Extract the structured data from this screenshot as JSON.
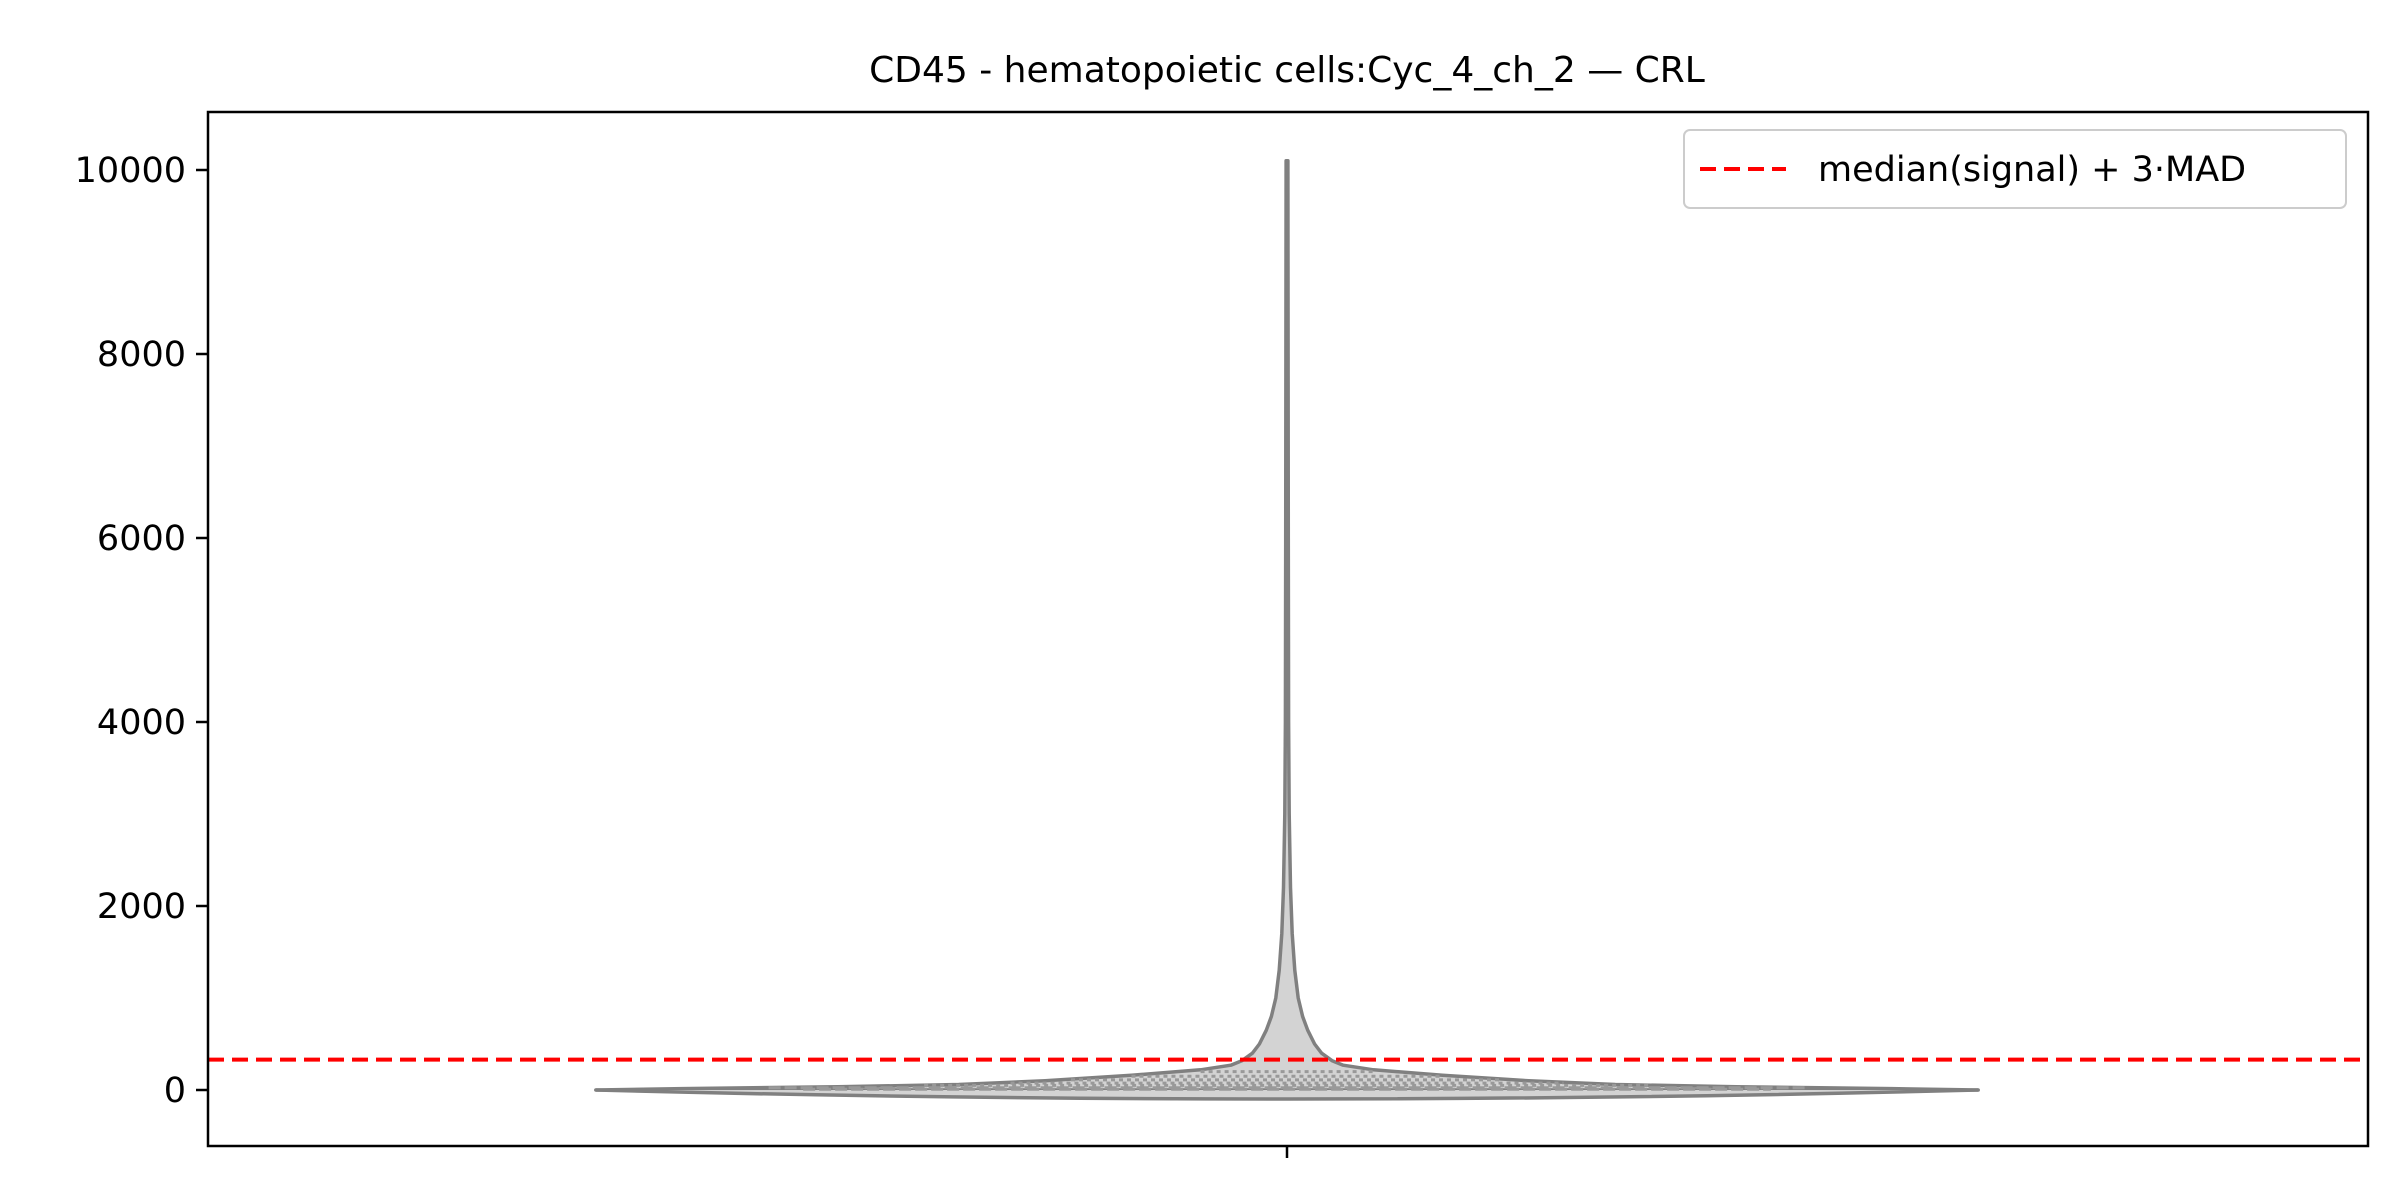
{
  "chart_data": {
    "type": "violin",
    "title": "CD45 - hematopoietic cells:Cyc_4_ch_2 — CRL",
    "xlabel": "",
    "ylabel": "",
    "categories": [
      ""
    ],
    "ylim": [
      -600,
      10600
    ],
    "yticks": [
      0,
      2000,
      4000,
      6000,
      8000,
      10000
    ],
    "ytick_labels": [
      "0",
      "2000",
      "4000",
      "6000",
      "8000",
      "10000"
    ],
    "grid": false,
    "legend": {
      "position": "top-right",
      "entries": [
        {
          "label": "median(signal) + 3·MAD",
          "style": "dashed",
          "color": "#ff0000"
        }
      ]
    },
    "threshold": {
      "label": "median(signal) + 3·MAD",
      "value": 330,
      "color": "#ff0000"
    },
    "violin": {
      "fill_color": "#d3d3d3",
      "edge_color": "#808080",
      "min": 0,
      "max": 10100,
      "density_profile": [
        {
          "y": 0,
          "halfwidth": 0.8
        },
        {
          "y": 15,
          "halfwidth": 0.7
        },
        {
          "y": 35,
          "halfwidth": 0.52
        },
        {
          "y": 60,
          "halfwidth": 0.38
        },
        {
          "y": 100,
          "halfwidth": 0.28
        },
        {
          "y": 160,
          "halfwidth": 0.18
        },
        {
          "y": 220,
          "halfwidth": 0.1
        },
        {
          "y": 270,
          "halfwidth": 0.065
        },
        {
          "y": 320,
          "halfwidth": 0.052
        },
        {
          "y": 400,
          "halfwidth": 0.04
        },
        {
          "y": 500,
          "halfwidth": 0.032
        },
        {
          "y": 650,
          "halfwidth": 0.024
        },
        {
          "y": 800,
          "halfwidth": 0.018
        },
        {
          "y": 1000,
          "halfwidth": 0.013
        },
        {
          "y": 1300,
          "halfwidth": 0.009
        },
        {
          "y": 1700,
          "halfwidth": 0.006
        },
        {
          "y": 2200,
          "halfwidth": 0.004
        },
        {
          "y": 3000,
          "halfwidth": 0.0025
        },
        {
          "y": 4000,
          "halfwidth": 0.0018
        },
        {
          "y": 6000,
          "halfwidth": 0.0015
        },
        {
          "y": 8000,
          "halfwidth": 0.0013
        },
        {
          "y": 10100,
          "halfwidth": 0.001
        }
      ],
      "quartile_lines": [
        {
          "y": 8,
          "halfwidth": 0.56,
          "style": "dashed"
        },
        {
          "y": 25,
          "halfwidth": 0.6,
          "style": "dashed"
        },
        {
          "y": 50,
          "halfwidth": 0.42,
          "style": "dotted"
        },
        {
          "y": 75,
          "halfwidth": 0.32,
          "style": "dotted"
        },
        {
          "y": 110,
          "halfwidth": 0.25,
          "style": "dotted"
        },
        {
          "y": 150,
          "halfwidth": 0.18,
          "style": "dotted"
        },
        {
          "y": 200,
          "halfwidth": 0.1,
          "style": "dotted"
        }
      ]
    }
  }
}
